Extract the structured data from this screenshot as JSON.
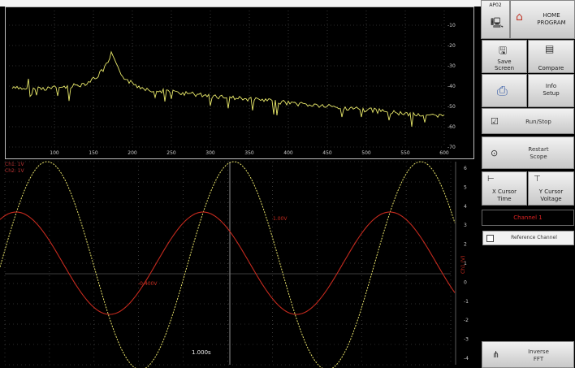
{
  "toolbar": {
    "top_label": "AP02",
    "home_label_1": "HOME",
    "home_label_2": "PROGRAM",
    "buttons": [
      {
        "line1": "Save",
        "line2": "Screen"
      },
      {
        "line1": "",
        "line2": "Compare"
      },
      {
        "line1": "",
        "line2": ""
      },
      {
        "line1": "Info",
        "line2": "Setup"
      },
      {
        "line1": "",
        "line2": "Run/Stop"
      },
      {
        "line1": "Restart",
        "line2": "Scope"
      },
      {
        "line1": "X Cursor",
        "line2": "Time"
      },
      {
        "line1": "Y Cursor",
        "line2": "Voltage"
      },
      {
        "line1": "Inverse",
        "line2": "FFT"
      }
    ],
    "display_field": "Channel 1",
    "checkbox_label": "Reference Channel"
  },
  "fft": {
    "x_ticks": [
      "100",
      "150",
      "200",
      "250",
      "300",
      "350",
      "400",
      "450",
      "500",
      "550",
      "600"
    ],
    "y_ticks": [
      "-10",
      "-20",
      "-30",
      "-40",
      "-50",
      "-60",
      "-70"
    ]
  },
  "scope": {
    "readouts": [
      "Ch1: 1V",
      "Ch2: 1V"
    ],
    "marker_a": "1.00V",
    "marker_b": "-0.400V",
    "time_label": "1.000s",
    "right_axis_label": "Ch1 (V)",
    "right_ticks": [
      "6",
      "5",
      "4",
      "3",
      "2",
      "1",
      "0",
      "-1",
      "-2",
      "-3",
      "-4"
    ]
  },
  "colors": {
    "fft_trace": "#e9e96a",
    "sine_yellow": "#e8e26a",
    "sine_red": "#c52a1e",
    "button_bg": "#d9d9d9",
    "grid": "#5a5a5a"
  }
}
